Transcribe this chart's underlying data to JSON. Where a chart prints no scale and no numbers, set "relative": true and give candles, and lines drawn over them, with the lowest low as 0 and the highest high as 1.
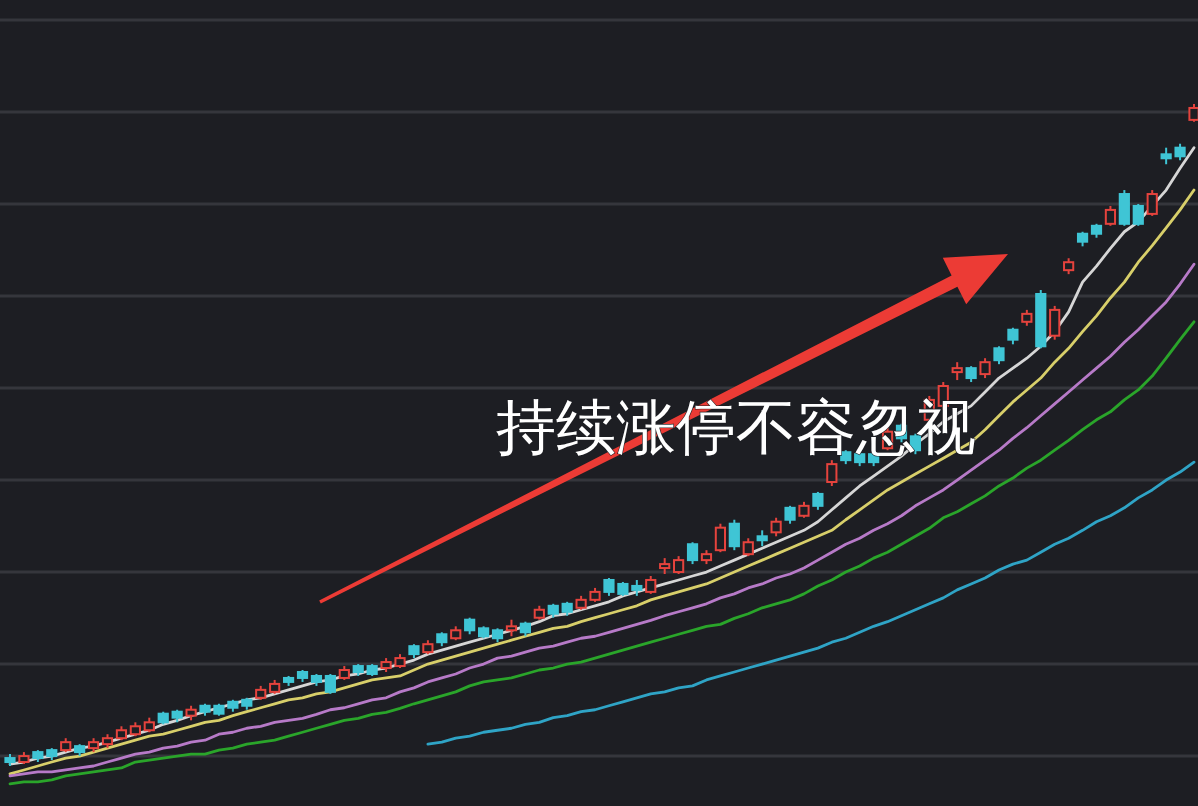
{
  "chart_data": {
    "type": "candlestick",
    "relative": true,
    "grid": "y",
    "annotations": [
      "持续涨停不容忽视"
    ],
    "categories": [
      null,
      null,
      null,
      null,
      null,
      null,
      null,
      null,
      null,
      null,
      null,
      null,
      null,
      null,
      null,
      null,
      null,
      null,
      null,
      null,
      null,
      null,
      null,
      null,
      null,
      null,
      null,
      null,
      null,
      null,
      null,
      null,
      null,
      null,
      null,
      null,
      null,
      null,
      null,
      null,
      null,
      null,
      null,
      null,
      null,
      null,
      null,
      null,
      null,
      null,
      null,
      null,
      null,
      null,
      null,
      null,
      null,
      null,
      null,
      null,
      null,
      null,
      null,
      null,
      null,
      null,
      null,
      null,
      null,
      null,
      null,
      null,
      null,
      null,
      null,
      null,
      null,
      null,
      null,
      null,
      null,
      null,
      null,
      null,
      null,
      null
    ],
    "ohlc": [
      [
        0.012,
        0.018,
        0,
        0.006
      ],
      [
        0.006,
        0.021,
        0.003,
        0.015
      ],
      [
        0.021,
        0.024,
        0.006,
        0.012
      ],
      [
        0.024,
        0.027,
        0.009,
        0.015
      ],
      [
        0.024,
        0.042,
        0.021,
        0.036
      ],
      [
        0.03,
        0.033,
        0.015,
        0.021
      ],
      [
        0.027,
        0.042,
        0.021,
        0.036
      ],
      [
        0.033,
        0.048,
        0.027,
        0.042
      ],
      [
        0.042,
        0.06,
        0.039,
        0.054
      ],
      [
        0.048,
        0.066,
        0.045,
        0.06
      ],
      [
        0.054,
        0.073,
        0.051,
        0.066
      ],
      [
        0.079,
        0.082,
        0.063,
        0.066
      ],
      [
        0.082,
        0.085,
        0.066,
        0.073
      ],
      [
        0.076,
        0.091,
        0.069,
        0.085
      ],
      [
        0.091,
        0.094,
        0.076,
        0.082
      ],
      [
        0.091,
        0.094,
        0.076,
        0.079
      ],
      [
        0.097,
        0.1,
        0.082,
        0.088
      ],
      [
        0.1,
        0.103,
        0.085,
        0.091
      ],
      [
        0.103,
        0.121,
        0.1,
        0.115
      ],
      [
        0.112,
        0.13,
        0.109,
        0.124
      ],
      [
        0.133,
        0.136,
        0.121,
        0.127
      ],
      [
        0.142,
        0.145,
        0.127,
        0.133
      ],
      [
        0.136,
        0.139,
        0.121,
        0.127
      ],
      [
        0.136,
        0.139,
        0.109,
        0.112
      ],
      [
        0.133,
        0.151,
        0.13,
        0.145
      ],
      [
        0.151,
        0.154,
        0.136,
        0.142
      ],
      [
        0.151,
        0.154,
        0.136,
        0.139
      ],
      [
        0.148,
        0.163,
        0.142,
        0.157
      ],
      [
        0.151,
        0.169,
        0.148,
        0.163
      ],
      [
        0.181,
        0.184,
        0.163,
        0.169
      ],
      [
        0.172,
        0.19,
        0.169,
        0.184
      ],
      [
        0.199,
        0.202,
        0.181,
        0.187
      ],
      [
        0.193,
        0.211,
        0.19,
        0.205
      ],
      [
        0.221,
        0.224,
        0.199,
        0.205
      ],
      [
        0.208,
        0.211,
        0.193,
        0.196
      ],
      [
        0.205,
        0.208,
        0.187,
        0.193
      ],
      [
        0.205,
        0.221,
        0.196,
        0.211
      ],
      [
        0.215,
        0.218,
        0.196,
        0.202
      ],
      [
        0.224,
        0.242,
        0.221,
        0.236
      ],
      [
        0.242,
        0.245,
        0.224,
        0.23
      ],
      [
        0.245,
        0.248,
        0.227,
        0.233
      ],
      [
        0.239,
        0.257,
        0.236,
        0.251
      ],
      [
        0.251,
        0.269,
        0.248,
        0.263
      ],
      [
        0.281,
        0.284,
        0.257,
        0.263
      ],
      [
        0.275,
        0.278,
        0.257,
        0.26
      ],
      [
        0.272,
        0.281,
        0.257,
        0.266
      ],
      [
        0.263,
        0.287,
        0.26,
        0.281
      ],
      [
        0.299,
        0.314,
        0.29,
        0.305
      ],
      [
        0.293,
        0.317,
        0.29,
        0.311
      ],
      [
        0.335,
        0.338,
        0.305,
        0.311
      ],
      [
        0.311,
        0.326,
        0.305,
        0.32
      ],
      [
        0.326,
        0.366,
        0.323,
        0.36
      ],
      [
        0.366,
        0.372,
        0.326,
        0.332
      ],
      [
        0.32,
        0.344,
        0.317,
        0.338
      ],
      [
        0.347,
        0.356,
        0.332,
        0.341
      ],
      [
        0.353,
        0.375,
        0.347,
        0.369
      ],
      [
        0.39,
        0.393,
        0.366,
        0.372
      ],
      [
        0.378,
        0.399,
        0.375,
        0.393
      ],
      [
        0.411,
        0.414,
        0.387,
        0.393
      ],
      [
        0.429,
        0.462,
        0.423,
        0.456
      ],
      [
        0.474,
        0.477,
        0.456,
        0.462
      ],
      [
        0.471,
        0.474,
        0.453,
        0.459
      ],
      [
        0.471,
        0.474,
        0.453,
        0.459
      ],
      [
        0.48,
        0.511,
        0.477,
        0.505
      ],
      [
        0.514,
        0.517,
        0.489,
        0.495
      ],
      [
        0.498,
        0.502,
        0.471,
        0.477
      ],
      [
        0.523,
        0.559,
        0.517,
        0.553
      ],
      [
        0.544,
        0.58,
        0.538,
        0.574
      ],
      [
        0.595,
        0.61,
        0.583,
        0.601
      ],
      [
        0.601,
        0.604,
        0.58,
        0.586
      ],
      [
        0.592,
        0.616,
        0.586,
        0.61
      ],
      [
        0.631,
        0.634,
        0.607,
        0.613
      ],
      [
        0.659,
        0.662,
        0.637,
        0.644
      ],
      [
        0.671,
        0.689,
        0.665,
        0.683
      ],
      [
        0.713,
        0.719,
        0.631,
        0.634
      ],
      [
        0.65,
        0.695,
        0.644,
        0.689
      ],
      [
        0.749,
        0.767,
        0.743,
        0.761
      ],
      [
        0.804,
        0.807,
        0.785,
        0.792
      ],
      [
        0.816,
        0.819,
        0.798,
        0.804
      ],
      [
        0.819,
        0.846,
        0.816,
        0.84
      ],
      [
        0.864,
        0.87,
        0.816,
        0.819
      ],
      [
        0.846,
        0.849,
        0.816,
        0.819
      ],
      [
        0.834,
        0.87,
        0.831,
        0.864
      ],
      [
        0.924,
        0.934,
        0.909,
        0.918
      ],
      [
        0.934,
        0.94,
        0.915,
        0.921
      ],
      [
        0.976,
        1,
        0.973,
        0.994
      ]
    ],
    "colors": [
      "#3fc5d5",
      "#e5433d",
      "#3fc5d5",
      "#3fc5d5",
      "#e5433d",
      "#3fc5d5",
      "#e5433d",
      "#e5433d",
      "#e5433d",
      "#e5433d",
      "#e5433d",
      "#3fc5d5",
      "#3fc5d5",
      "#e5433d",
      "#3fc5d5",
      "#3fc5d5",
      "#3fc5d5",
      "#3fc5d5",
      "#e5433d",
      "#e5433d",
      "#3fc5d5",
      "#3fc5d5",
      "#3fc5d5",
      "#3fc5d5",
      "#e5433d",
      "#3fc5d5",
      "#3fc5d5",
      "#e5433d",
      "#e5433d",
      "#3fc5d5",
      "#e5433d",
      "#3fc5d5",
      "#e5433d",
      "#3fc5d5",
      "#3fc5d5",
      "#3fc5d5",
      "#e5433d",
      "#3fc5d5",
      "#e5433d",
      "#3fc5d5",
      "#3fc5d5",
      "#e5433d",
      "#e5433d",
      "#3fc5d5",
      "#3fc5d5",
      "#3fc5d5",
      "#e5433d",
      "#e5433d",
      "#e5433d",
      "#3fc5d5",
      "#e5433d",
      "#e5433d",
      "#3fc5d5",
      "#e5433d",
      "#3fc5d5",
      "#e5433d",
      "#3fc5d5",
      "#e5433d",
      "#3fc5d5",
      "#e5433d",
      "#3fc5d5",
      "#3fc5d5",
      "#3fc5d5",
      "#e5433d",
      "#3fc5d5",
      "#3fc5d5",
      "#e5433d",
      "#e5433d",
      "#e5433d",
      "#3fc5d5",
      "#e5433d",
      "#3fc5d5",
      "#3fc5d5",
      "#e5433d",
      "#3fc5d5",
      "#e5433d",
      "#e5433d",
      "#3fc5d5",
      "#3fc5d5",
      "#e5433d",
      "#3fc5d5",
      "#3fc5d5",
      "#e5433d",
      "#3fc5d5",
      "#3fc5d5",
      "#e5433d"
    ],
    "series": [
      {
        "type": "line",
        "color": "#d6d6d6",
        "values": [
          0.003,
          0.006,
          0.012,
          0.015,
          0.021,
          0.027,
          0.03,
          0.036,
          0.042,
          0.048,
          0.054,
          0.063,
          0.069,
          0.076,
          0.082,
          0.088,
          0.094,
          0.1,
          0.103,
          0.109,
          0.115,
          0.121,
          0.127,
          0.13,
          0.136,
          0.139,
          0.145,
          0.148,
          0.154,
          0.16,
          0.169,
          0.175,
          0.181,
          0.187,
          0.193,
          0.199,
          0.205,
          0.211,
          0.218,
          0.227,
          0.23,
          0.236,
          0.242,
          0.248,
          0.257,
          0.263,
          0.269,
          0.275,
          0.281,
          0.287,
          0.293,
          0.302,
          0.311,
          0.32,
          0.329,
          0.338,
          0.347,
          0.356,
          0.369,
          0.387,
          0.405,
          0.423,
          0.438,
          0.453,
          0.468,
          0.486,
          0.502,
          0.52,
          0.532,
          0.544,
          0.565,
          0.586,
          0.601,
          0.616,
          0.634,
          0.656,
          0.686,
          0.731,
          0.755,
          0.782,
          0.807,
          0.822,
          0.846,
          0.87,
          0.903,
          0.934
        ]
      },
      {
        "type": "line",
        "color": "#d8cf6a",
        "values": [
          -0.012,
          -0.006,
          0,
          0.006,
          0.012,
          0.015,
          0.021,
          0.027,
          0.033,
          0.039,
          0.045,
          0.048,
          0.054,
          0.06,
          0.066,
          0.069,
          0.076,
          0.082,
          0.088,
          0.094,
          0.1,
          0.103,
          0.109,
          0.112,
          0.118,
          0.124,
          0.13,
          0.133,
          0.136,
          0.145,
          0.154,
          0.16,
          0.166,
          0.172,
          0.178,
          0.184,
          0.19,
          0.196,
          0.202,
          0.208,
          0.211,
          0.218,
          0.224,
          0.23,
          0.236,
          0.242,
          0.251,
          0.257,
          0.263,
          0.269,
          0.275,
          0.284,
          0.293,
          0.302,
          0.311,
          0.32,
          0.329,
          0.338,
          0.347,
          0.356,
          0.372,
          0.387,
          0.402,
          0.417,
          0.429,
          0.441,
          0.453,
          0.465,
          0.477,
          0.489,
          0.508,
          0.529,
          0.55,
          0.568,
          0.586,
          0.61,
          0.631,
          0.656,
          0.68,
          0.707,
          0.731,
          0.761,
          0.786,
          0.813,
          0.84,
          0.87
        ]
      },
      {
        "type": "line",
        "color": "#b77ac8",
        "values": [
          -0.015,
          -0.012,
          -0.009,
          -0.009,
          -0.006,
          -0.003,
          0,
          0.006,
          0.012,
          0.018,
          0.021,
          0.027,
          0.03,
          0.036,
          0.039,
          0.048,
          0.051,
          0.057,
          0.06,
          0.066,
          0.069,
          0.072,
          0.078,
          0.085,
          0.088,
          0.094,
          0.1,
          0.103,
          0.112,
          0.118,
          0.127,
          0.133,
          0.139,
          0.148,
          0.154,
          0.163,
          0.166,
          0.172,
          0.178,
          0.181,
          0.187,
          0.193,
          0.196,
          0.202,
          0.208,
          0.214,
          0.22,
          0.227,
          0.233,
          0.239,
          0.245,
          0.254,
          0.26,
          0.269,
          0.275,
          0.284,
          0.29,
          0.299,
          0.311,
          0.323,
          0.335,
          0.344,
          0.356,
          0.366,
          0.378,
          0.393,
          0.405,
          0.417,
          0.432,
          0.447,
          0.462,
          0.477,
          0.495,
          0.511,
          0.529,
          0.547,
          0.565,
          0.583,
          0.601,
          0.619,
          0.64,
          0.659,
          0.68,
          0.701,
          0.728,
          0.758
        ]
      },
      {
        "type": "line",
        "color": "#2aa52a",
        "values": [
          -0.027,
          -0.024,
          -0.024,
          -0.021,
          -0.015,
          -0.012,
          -0.009,
          -0.006,
          -0.003,
          0.006,
          0.009,
          0.012,
          0.015,
          0.018,
          0.018,
          0.024,
          0.027,
          0.033,
          0.036,
          0.039,
          0.045,
          0.051,
          0.057,
          0.063,
          0.069,
          0.072,
          0.078,
          0.081,
          0.087,
          0.094,
          0.1,
          0.106,
          0.112,
          0.121,
          0.127,
          0.13,
          0.133,
          0.139,
          0.145,
          0.148,
          0.154,
          0.157,
          0.163,
          0.169,
          0.175,
          0.181,
          0.187,
          0.193,
          0.199,
          0.205,
          0.211,
          0.214,
          0.223,
          0.23,
          0.239,
          0.245,
          0.251,
          0.26,
          0.272,
          0.281,
          0.293,
          0.302,
          0.314,
          0.323,
          0.335,
          0.347,
          0.359,
          0.375,
          0.384,
          0.396,
          0.408,
          0.423,
          0.435,
          0.45,
          0.462,
          0.477,
          0.492,
          0.508,
          0.523,
          0.535,
          0.553,
          0.568,
          0.589,
          0.616,
          0.644,
          0.671
        ]
      },
      {
        "type": "line",
        "color": "#2fa4c6",
        "values": [
          null,
          null,
          null,
          null,
          null,
          null,
          null,
          null,
          null,
          null,
          null,
          null,
          null,
          null,
          null,
          null,
          null,
          null,
          null,
          null,
          null,
          null,
          null,
          null,
          null,
          null,
          null,
          null,
          null,
          null,
          0.033,
          0.036,
          0.042,
          0.045,
          0.051,
          0.054,
          0.057,
          0.063,
          0.066,
          0.073,
          0.076,
          0.082,
          0.085,
          0.091,
          0.097,
          0.103,
          0.109,
          0.112,
          0.118,
          0.121,
          0.13,
          0.136,
          0.142,
          0.148,
          0.154,
          0.16,
          0.166,
          0.172,
          0.178,
          0.187,
          0.193,
          0.202,
          0.211,
          0.218,
          0.227,
          0.236,
          0.245,
          0.254,
          0.266,
          0.275,
          0.284,
          0.296,
          0.305,
          0.311,
          0.323,
          0.335,
          0.344,
          0.356,
          0.369,
          0.378,
          0.39,
          0.405,
          0.417,
          0.432,
          0.444,
          0.459
        ]
      }
    ]
  }
}
